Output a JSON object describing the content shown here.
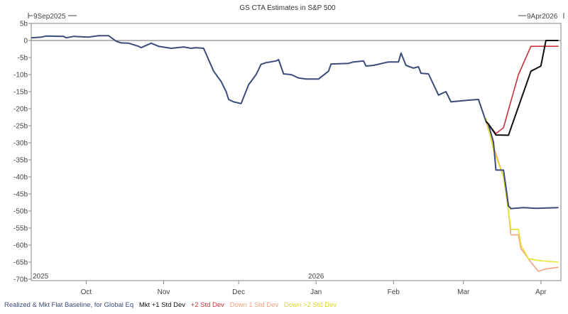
{
  "chart_data": {
    "type": "line",
    "title": "GS CTA Estimates in S&P 500",
    "start_label": "9Sep2025",
    "end_label": "9Apr2026",
    "x_range": [
      "2025-09-09",
      "2026-04-09"
    ],
    "year_labels": [
      {
        "date": "2025-09-09",
        "label": "2025"
      },
      {
        "date": "2026-01-01",
        "label": "2026"
      }
    ],
    "x_ticks": [
      {
        "date": "2025-10-01",
        "label": "Oct"
      },
      {
        "date": "2025-11-01",
        "label": "Nov"
      },
      {
        "date": "2025-12-01",
        "label": "Dec"
      },
      {
        "date": "2026-01-01",
        "label": "Jan"
      },
      {
        "date": "2026-02-01",
        "label": "Feb"
      },
      {
        "date": "2026-03-01",
        "label": "Mar"
      },
      {
        "date": "2026-04-01",
        "label": "Apr"
      }
    ],
    "ylim": [
      -70,
      5
    ],
    "y_ticks": [
      5,
      0,
      -5,
      -10,
      -15,
      -20,
      -25,
      -30,
      -35,
      -40,
      -45,
      -50,
      -55,
      -60,
      -65,
      -70
    ],
    "y_tick_labels": [
      "5b",
      "0",
      "-5b",
      "-10b",
      "-15b",
      "-20b",
      "-25b",
      "-30b",
      "-35b",
      "-40b",
      "-45b",
      "-50b",
      "-55b",
      "-60b",
      "-65b",
      "-70b"
    ],
    "zero_line": true,
    "grid": false,
    "legend_position": "bottom",
    "series": [
      {
        "name": "Realized & Mkt Flat Baseline, for Global Eq",
        "color": "#3b4c7a",
        "points": [
          [
            "2025-09-09",
            0.8
          ],
          [
            "2025-09-13",
            1.0
          ],
          [
            "2025-09-15",
            1.3
          ],
          [
            "2025-09-22",
            1.2
          ],
          [
            "2025-09-23",
            0.8
          ],
          [
            "2025-09-26",
            1.2
          ],
          [
            "2025-10-02",
            1.0
          ],
          [
            "2025-10-06",
            1.4
          ],
          [
            "2025-10-10",
            1.4
          ],
          [
            "2025-10-13",
            -0.2
          ],
          [
            "2025-10-15",
            -0.7
          ],
          [
            "2025-10-18",
            -0.8
          ],
          [
            "2025-10-22",
            -1.7
          ],
          [
            "2025-10-23",
            -2.1
          ],
          [
            "2025-10-27",
            -0.8
          ],
          [
            "2025-10-30",
            -1.7
          ],
          [
            "2025-11-04",
            -2.3
          ],
          [
            "2025-11-09",
            -1.9
          ],
          [
            "2025-11-12",
            -2.3
          ],
          [
            "2025-11-14",
            -2.1
          ],
          [
            "2025-11-17",
            -2.3
          ],
          [
            "2025-11-21",
            -9
          ],
          [
            "2025-11-24",
            -12
          ],
          [
            "2025-11-26",
            -15
          ],
          [
            "2025-11-27",
            -17.3
          ],
          [
            "2025-11-29",
            -18
          ],
          [
            "2025-12-02",
            -18.5
          ],
          [
            "2025-12-05",
            -13
          ],
          [
            "2025-12-08",
            -10
          ],
          [
            "2025-12-10",
            -7
          ],
          [
            "2025-12-12",
            -6.5
          ],
          [
            "2025-12-16",
            -6
          ],
          [
            "2025-12-17",
            -5.6
          ],
          [
            "2025-12-19",
            -9.8
          ],
          [
            "2025-12-22",
            -10
          ],
          [
            "2025-12-25",
            -11
          ],
          [
            "2025-12-28",
            -11.3
          ],
          [
            "2026-01-02",
            -11.3
          ],
          [
            "2026-01-06",
            -9
          ],
          [
            "2026-01-07",
            -6.9
          ],
          [
            "2026-01-14",
            -6.7
          ],
          [
            "2026-01-16",
            -6.3
          ],
          [
            "2026-01-20",
            -6
          ],
          [
            "2026-01-21",
            -7.5
          ],
          [
            "2026-01-24",
            -7.3
          ],
          [
            "2026-01-30",
            -6.3
          ],
          [
            "2026-02-03",
            -6.3
          ],
          [
            "2026-02-04",
            -3.7
          ],
          [
            "2026-02-06",
            -7.3
          ],
          [
            "2026-02-09",
            -8.1
          ],
          [
            "2026-02-11",
            -7.7
          ],
          [
            "2026-02-12",
            -9.6
          ],
          [
            "2026-02-15",
            -9.8
          ],
          [
            "2026-02-19",
            -16
          ],
          [
            "2026-02-22",
            -15
          ],
          [
            "2026-02-24",
            -18
          ],
          [
            "2026-03-03",
            -17.5
          ],
          [
            "2026-03-07",
            -17.3
          ],
          [
            "2026-03-10",
            -23.7
          ],
          [
            "2026-03-11",
            -24.6
          ],
          [
            "2026-03-13",
            -29.8
          ],
          [
            "2026-03-14",
            -38
          ],
          [
            "2026-03-17",
            -38
          ],
          [
            "2026-03-18",
            -43
          ],
          [
            "2026-03-19",
            -48.5
          ],
          [
            "2026-03-20",
            -49.3
          ],
          [
            "2026-03-25",
            -49
          ],
          [
            "2026-03-30",
            -49.2
          ],
          [
            "2026-04-08",
            -49
          ]
        ]
      },
      {
        "name": "Mkt +1 Std Dev",
        "color": "#111111",
        "points": [
          [
            "2026-03-10",
            -23.7
          ],
          [
            "2026-03-11",
            -24.5
          ],
          [
            "2026-03-14",
            -27.7
          ],
          [
            "2026-03-19",
            -27.8
          ],
          [
            "2026-03-28",
            -9
          ],
          [
            "2026-04-01",
            -7.5
          ],
          [
            "2026-04-03",
            0
          ],
          [
            "2026-04-08",
            0
          ]
        ]
      },
      {
        "name": "+2 Std Dev",
        "color": "#c8323c",
        "points": [
          [
            "2026-03-10",
            -23.7
          ],
          [
            "2026-03-14",
            -27.3
          ],
          [
            "2026-03-17",
            -25.6
          ],
          [
            "2026-03-19",
            -20.4
          ],
          [
            "2026-03-23",
            -10
          ],
          [
            "2026-03-28",
            -1.7
          ],
          [
            "2026-04-08",
            -1.7
          ]
        ]
      },
      {
        "name": "Down 1 Std Dev",
        "color": "#f2a27e",
        "points": [
          [
            "2026-03-10",
            -23.7
          ],
          [
            "2026-03-13",
            -31
          ],
          [
            "2026-03-17",
            -40
          ],
          [
            "2026-03-19",
            -50
          ],
          [
            "2026-03-20",
            -57
          ],
          [
            "2026-03-23",
            -57
          ],
          [
            "2026-03-24",
            -61
          ],
          [
            "2026-03-28",
            -65
          ],
          [
            "2026-03-31",
            -67.7
          ],
          [
            "2026-04-03",
            -67
          ],
          [
            "2026-04-08",
            -66.5
          ]
        ]
      },
      {
        "name": "Down >2 Std Dev",
        "color": "#e3e32c",
        "points": [
          [
            "2026-03-10",
            -22.7
          ],
          [
            "2026-03-13",
            -32
          ],
          [
            "2026-03-17",
            -40
          ],
          [
            "2026-03-19",
            -50
          ],
          [
            "2026-03-20",
            -55.4
          ],
          [
            "2026-03-23",
            -55.4
          ],
          [
            "2026-03-24",
            -60
          ],
          [
            "2026-03-27",
            -64
          ],
          [
            "2026-04-01",
            -64.6
          ],
          [
            "2026-04-08",
            -65
          ]
        ]
      }
    ]
  }
}
